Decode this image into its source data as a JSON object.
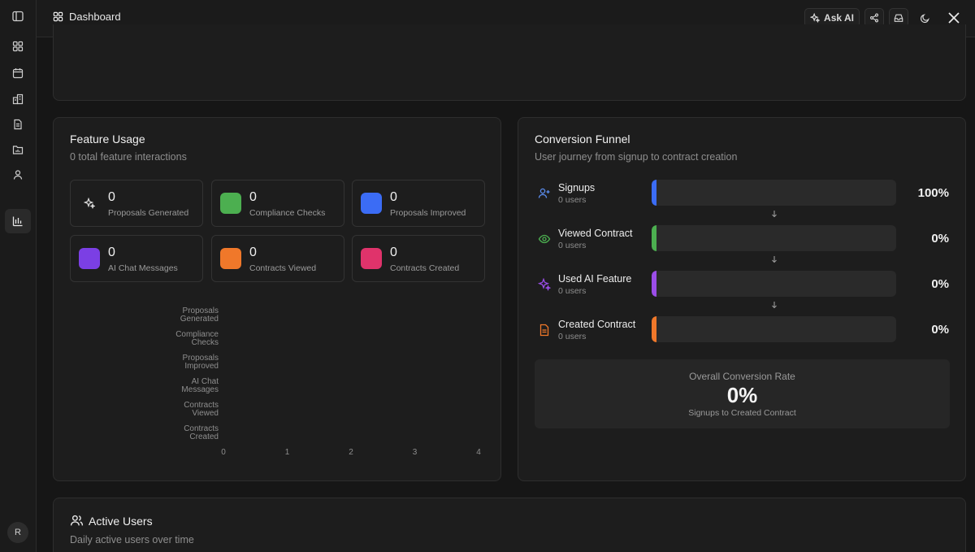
{
  "header": {
    "title": "Dashboard",
    "ask_ai_label": "Ask AI"
  },
  "sidebar": {
    "items": [
      "dashboard",
      "calendar",
      "buildings",
      "documents",
      "folder",
      "user",
      "analytics"
    ],
    "active": "analytics",
    "avatar_initial": "R"
  },
  "feature_usage": {
    "title": "Feature Usage",
    "subtitle": "0 total feature interactions",
    "tiles": [
      {
        "count": "0",
        "label": "Proposals Generated",
        "color": "#1d1d1d",
        "icon": "sparkles-icon"
      },
      {
        "count": "0",
        "label": "Compliance Checks",
        "color": "#4caf50",
        "icon": "none"
      },
      {
        "count": "0",
        "label": "Proposals Improved",
        "color": "#3b6cf5",
        "icon": "none"
      },
      {
        "count": "0",
        "label": "AI Chat Messages",
        "color": "#7b3fe4",
        "icon": "none"
      },
      {
        "count": "0",
        "label": "Contracts Viewed",
        "color": "#f0782a",
        "icon": "none"
      },
      {
        "count": "0",
        "label": "Contracts Created",
        "color": "#e0336b",
        "icon": "none"
      }
    ]
  },
  "chart_data": {
    "type": "bar",
    "orientation": "horizontal",
    "categories": [
      [
        "Proposals",
        "Generated"
      ],
      [
        "Compliance",
        "Checks"
      ],
      [
        "Proposals",
        "Improved"
      ],
      [
        "AI Chat",
        "Messages"
      ],
      [
        "Contracts",
        "Viewed"
      ],
      [
        "Contracts",
        "Created"
      ]
    ],
    "values": [
      0,
      0,
      0,
      0,
      0,
      0
    ],
    "xticks": [
      "0",
      "1",
      "2",
      "3",
      "4"
    ],
    "xlim": [
      0,
      4
    ],
    "grid": false
  },
  "funnel": {
    "title": "Conversion Funnel",
    "subtitle": "User journey from signup to contract creation",
    "steps": [
      {
        "name": "Signups",
        "users": "0 users",
        "pct": "100%",
        "color": "#3b6cf5",
        "icon": "user-plus-icon"
      },
      {
        "name": "Viewed Contract",
        "users": "0 users",
        "pct": "0%",
        "color": "#4caf50",
        "icon": "eye-icon"
      },
      {
        "name": "Used AI Feature",
        "users": "0 users",
        "pct": "0%",
        "color": "#9b4de8",
        "icon": "sparkles-icon"
      },
      {
        "name": "Created Contract",
        "users": "0 users",
        "pct": "0%",
        "color": "#f0782a",
        "icon": "file-icon"
      }
    ],
    "overall_label": "Overall Conversion Rate",
    "overall_value": "0%",
    "overall_sub": "Signups to Created Contract"
  },
  "active_users": {
    "title": "Active Users",
    "subtitle": "Daily active users over time"
  }
}
